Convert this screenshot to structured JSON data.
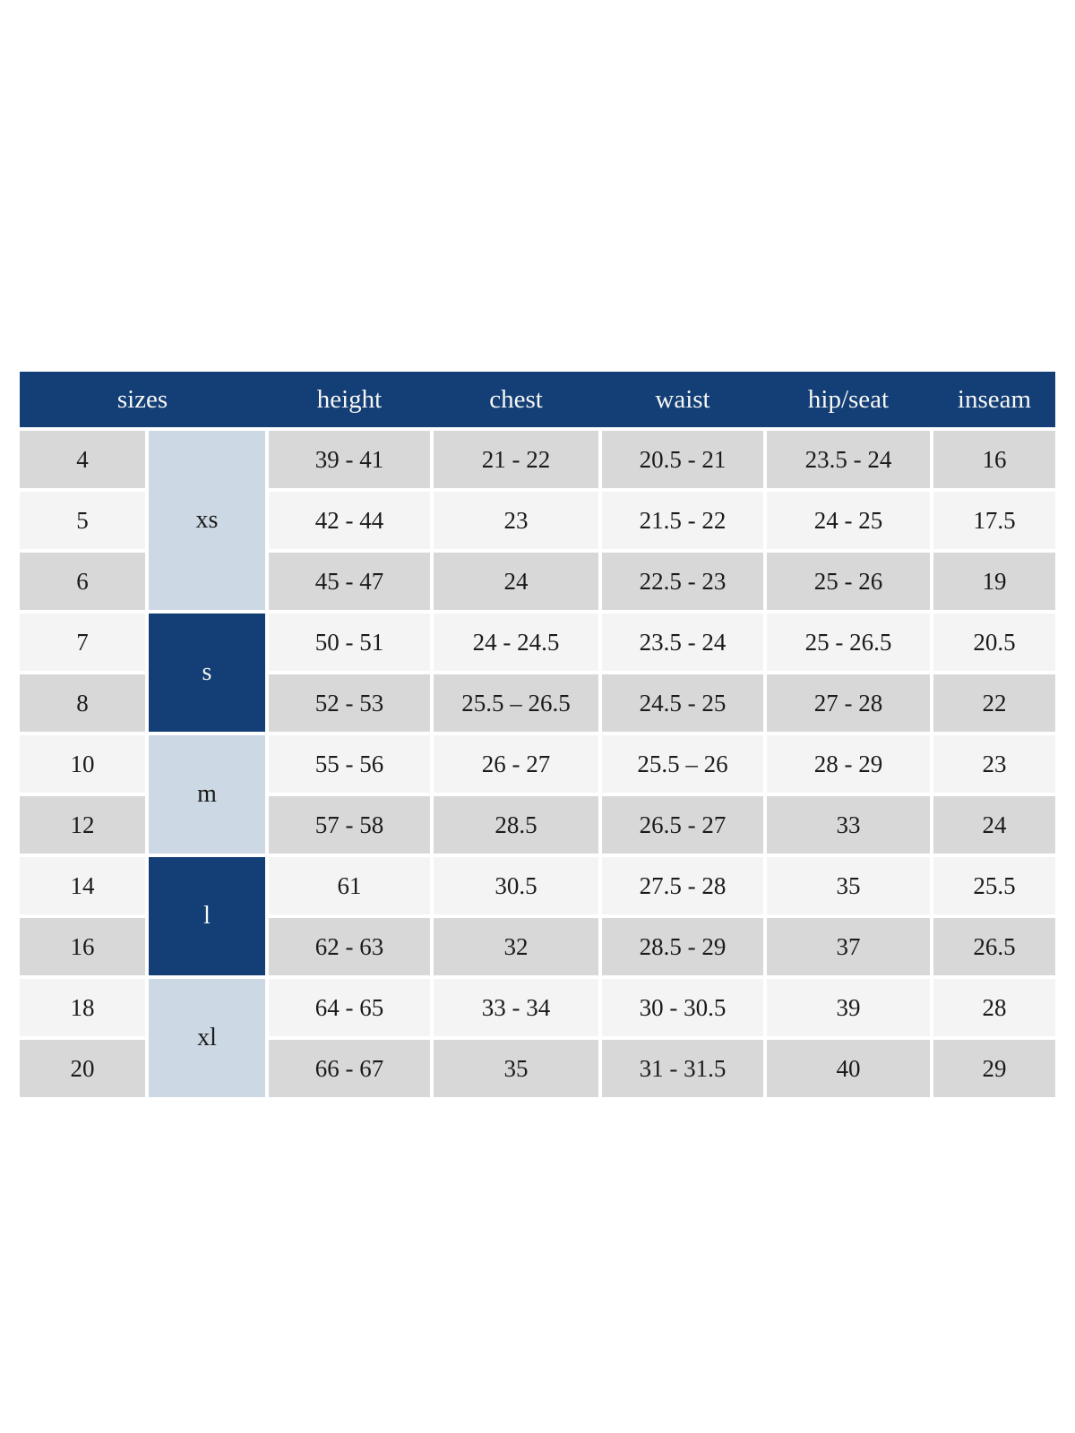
{
  "table": {
    "headers": [
      "sizes",
      "height",
      "chest",
      "waist",
      "hip/seat",
      "inseam"
    ],
    "colors": {
      "header_bg": "#133f76",
      "header_text": "#f7f7f5",
      "group_light_bg": "#ccd8e4",
      "group_dark_bg": "#133f76",
      "row_gray": "#d8d8d8",
      "row_light": "#f4f4f4",
      "cell_text": "#1b1b1b"
    },
    "size_groups": [
      {
        "label": "xs",
        "rows": 3,
        "style": "light"
      },
      {
        "label": "s",
        "rows": 2,
        "style": "dark"
      },
      {
        "label": "m",
        "rows": 2,
        "style": "light"
      },
      {
        "label": "l",
        "rows": 2,
        "style": "dark"
      },
      {
        "label": "xl",
        "rows": 2,
        "style": "light"
      }
    ],
    "rows": [
      {
        "size": "4",
        "height": "39 - 41",
        "chest": "21 - 22",
        "waist": "20.5 - 21",
        "hip_seat": "23.5 - 24",
        "inseam": "16"
      },
      {
        "size": "5",
        "height": "42 - 44",
        "chest": "23",
        "waist": "21.5 - 22",
        "hip_seat": "24 - 25",
        "inseam": "17.5"
      },
      {
        "size": "6",
        "height": "45 - 47",
        "chest": "24",
        "waist": "22.5 - 23",
        "hip_seat": "25 - 26",
        "inseam": "19"
      },
      {
        "size": "7",
        "height": "50 - 51",
        "chest": "24 - 24.5",
        "waist": "23.5 - 24",
        "hip_seat": "25 - 26.5",
        "inseam": "20.5"
      },
      {
        "size": "8",
        "height": "52 - 53",
        "chest": "25.5 – 26.5",
        "waist": "24.5 - 25",
        "hip_seat": "27 - 28",
        "inseam": "22"
      },
      {
        "size": "10",
        "height": "55 - 56",
        "chest": "26 - 27",
        "waist": "25.5 – 26",
        "hip_seat": "28 - 29",
        "inseam": "23"
      },
      {
        "size": "12",
        "height": "57 - 58",
        "chest": "28.5",
        "waist": "26.5 - 27",
        "hip_seat": "33",
        "inseam": "24"
      },
      {
        "size": "14",
        "height": "61",
        "chest": "30.5",
        "waist": "27.5 - 28",
        "hip_seat": "35",
        "inseam": "25.5"
      },
      {
        "size": "16",
        "height": "62 - 63",
        "chest": "32",
        "waist": "28.5 - 29",
        "hip_seat": "37",
        "inseam": "26.5"
      },
      {
        "size": "18",
        "height": "64 - 65",
        "chest": "33 - 34",
        "waist": "30 - 30.5",
        "hip_seat": "39",
        "inseam": "28"
      },
      {
        "size": "20",
        "height": "66 - 67",
        "chest": "35",
        "waist": "31 - 31.5",
        "hip_seat": "40",
        "inseam": "29"
      }
    ]
  }
}
